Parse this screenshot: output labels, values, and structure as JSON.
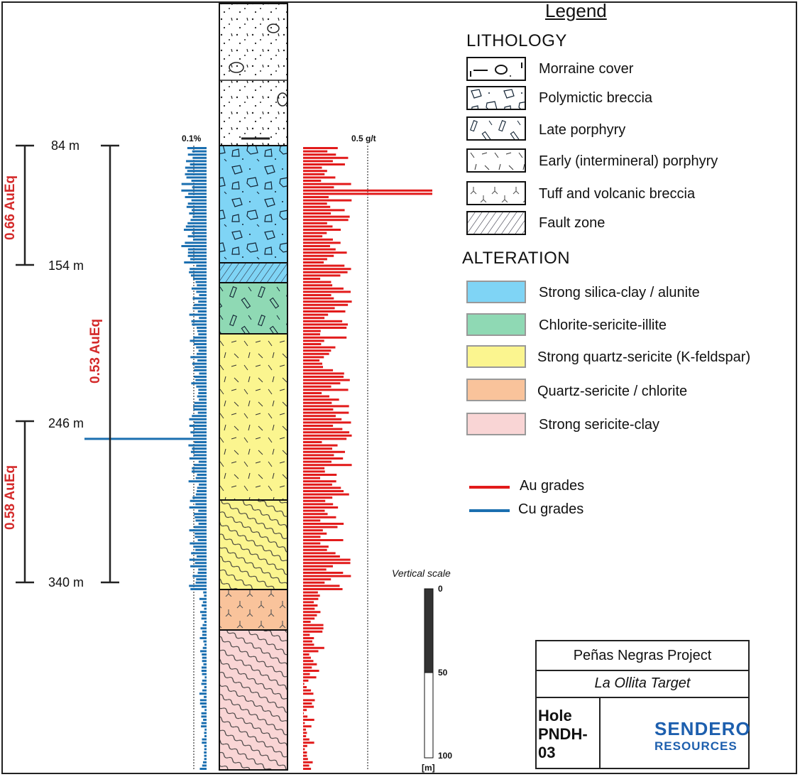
{
  "legend": {
    "title": "Legend",
    "lithology_title": "LITHOLOGY",
    "lithology": [
      {
        "label": "Morraine cover",
        "pattern": "morraine"
      },
      {
        "label": "Polymictic breccia",
        "pattern": "breccia"
      },
      {
        "label": "Late porphyry",
        "pattern": "late-porphyry"
      },
      {
        "label": "Early (intermineral) porphyry",
        "pattern": "early-porphyry"
      },
      {
        "label": "Tuff and volcanic breccia",
        "pattern": "tuff"
      },
      {
        "label": "Fault zone",
        "pattern": "fault"
      }
    ],
    "alteration_title": "ALTERATION",
    "alteration": [
      {
        "label": "Strong silica-clay / alunite",
        "color": "#7fd4f5"
      },
      {
        "label": "Chlorite-sericite-illite",
        "color": "#8fd9b4"
      },
      {
        "label": "Strong quartz-sericite (K-feldspar)",
        "color": "#fbf58f"
      },
      {
        "label": "Quartz-sericite / chlorite",
        "color": "#f9c39b"
      },
      {
        "label": "Strong sericite-clay",
        "color": "#f9d5d5"
      }
    ],
    "grades": [
      {
        "label": "Au grades",
        "color": "#e21b1b"
      },
      {
        "label": "Cu grades",
        "color": "#1b6fb0"
      }
    ]
  },
  "depths": {
    "top": "84 m",
    "d154": "154 m",
    "d246": "246 m",
    "bottom": "340 m"
  },
  "intervals": {
    "upper": "0.66 AuEq",
    "full": "0.53 AuEq",
    "lower": "0.58 AuEq"
  },
  "cu_axis_label": "0.1%",
  "au_axis_label": "0.5 g/t",
  "scale": {
    "title": "Vertical scale",
    "t0": "0",
    "t50": "50",
    "t100": "100",
    "unit": "[m]"
  },
  "titleblock": {
    "project": "Peñas Negras Project",
    "target": "La Ollita Target",
    "hole": "Hole PNDH-03",
    "logo_line1": "SENDERO",
    "logo_line2": "RESOURCES"
  },
  "colors": {
    "au": "#e21b1b",
    "cu": "#1b6fb0",
    "interval": "#d42a2a"
  }
}
